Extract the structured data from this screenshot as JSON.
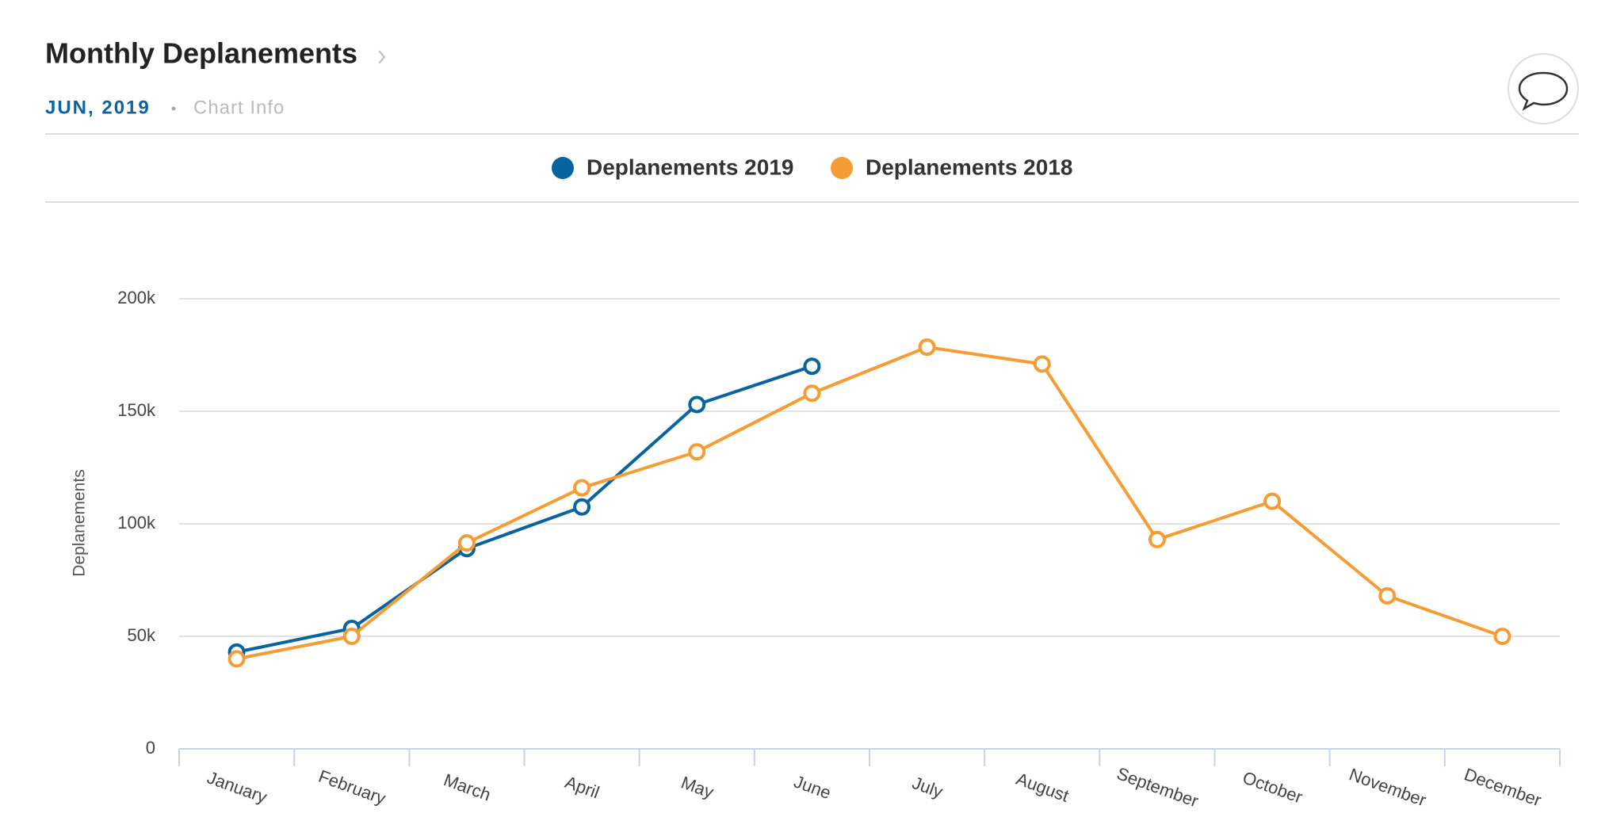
{
  "chart_data": {
    "type": "line",
    "title": "Monthly Deplanements",
    "subtitle": "JUN, 2019",
    "info_link": "Chart Info",
    "y_label": "Deplanements",
    "categories": [
      "January",
      "February",
      "March",
      "April",
      "May",
      "June",
      "July",
      "August",
      "September",
      "October",
      "November",
      "December"
    ],
    "series": [
      {
        "name": "Deplanements 2019",
        "color": "#0864a0",
        "values": [
          43000,
          53500,
          89000,
          107500,
          153000,
          170000,
          null,
          null,
          null,
          null,
          null,
          null
        ]
      },
      {
        "name": "Deplanements 2018",
        "color": "#f59c34",
        "values": [
          40000,
          50000,
          91500,
          116000,
          132000,
          158000,
          178500,
          171000,
          93000,
          110000,
          68000,
          50000
        ]
      }
    ],
    "ylim": [
      0,
      200000
    ],
    "yticks": [
      0,
      {
        "value": 50000,
        "label": "50k"
      },
      {
        "value": 100000,
        "label": "100k"
      },
      {
        "value": 150000,
        "label": "150k"
      },
      {
        "value": 200000,
        "label": "200k"
      }
    ],
    "grid": true,
    "legend": "top"
  }
}
